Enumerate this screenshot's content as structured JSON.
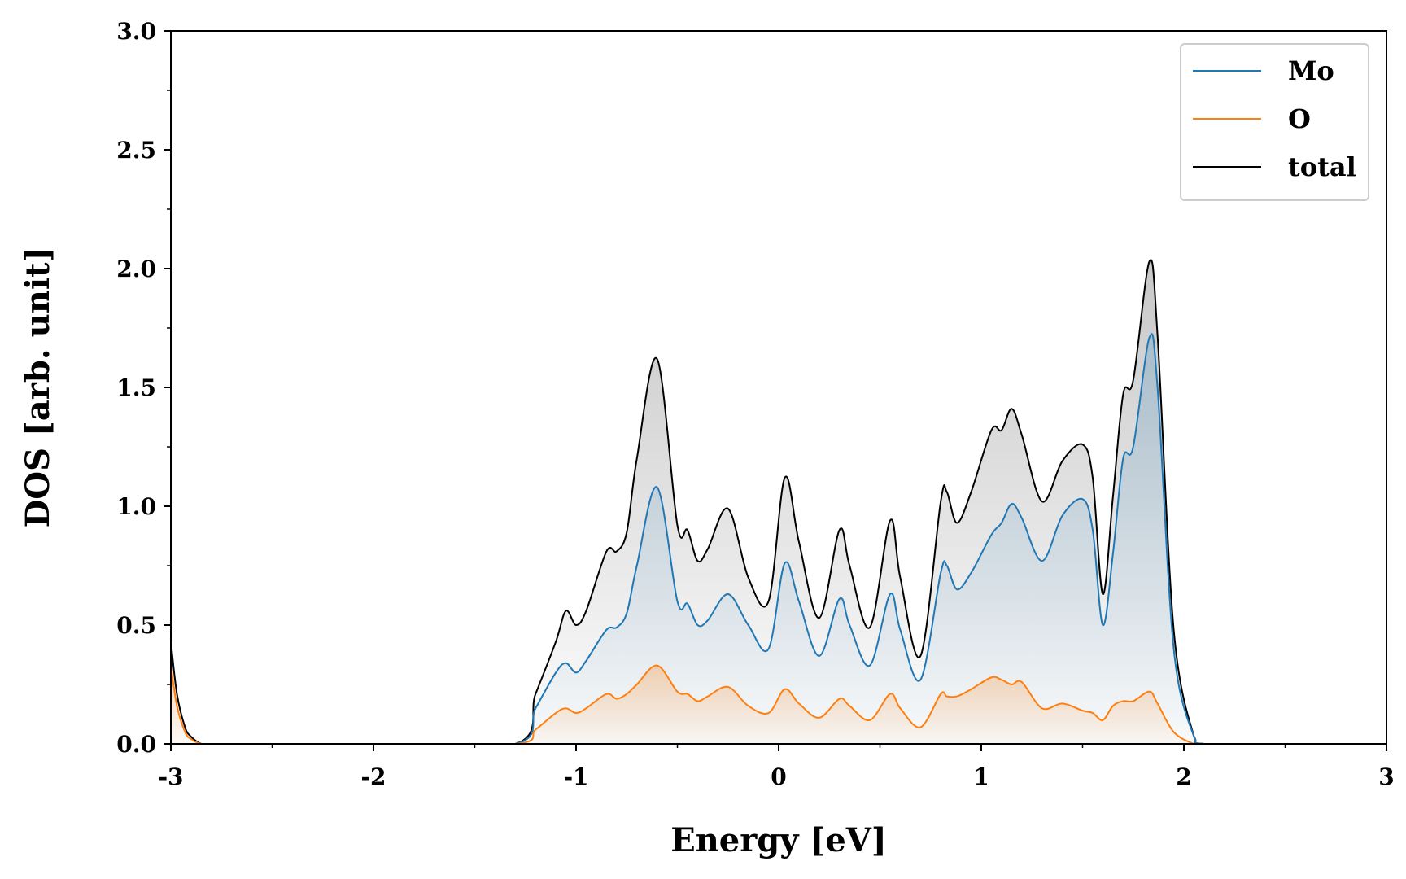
{
  "chart_data": {
    "type": "line",
    "title": "",
    "xlabel": "Energy [eV]",
    "ylabel": "DOS [arb. unit]",
    "xlim": [
      -3,
      3
    ],
    "ylim": [
      0,
      3.0
    ],
    "xticks": [
      -3,
      -2,
      -1,
      0,
      1,
      2,
      3
    ],
    "xtick_labels": [
      "-3",
      "-2",
      "-1",
      "0",
      "1",
      "2",
      "3"
    ],
    "yticks": [
      0,
      0.5,
      1.0,
      1.5,
      2.0,
      2.5,
      3.0
    ],
    "ytick_labels": [
      "0.0",
      "0.5",
      "1.0",
      "1.5",
      "2.0",
      "2.5",
      "3.0"
    ],
    "grid": false,
    "legend_position": "top-right",
    "x": [
      -3.0,
      -2.97,
      -2.93,
      -2.9,
      -2.85,
      -2.8,
      -2.0,
      -1.3,
      -1.2,
      -1.1,
      -1.05,
      -1.0,
      -0.95,
      -0.85,
      -0.8,
      -0.75,
      -0.7,
      -0.6,
      -0.5,
      -0.45,
      -0.4,
      -0.35,
      -0.25,
      -0.15,
      -0.05,
      0.03,
      0.1,
      0.2,
      0.3,
      0.35,
      0.45,
      0.55,
      0.6,
      0.7,
      0.8,
      0.83,
      0.88,
      0.95,
      1.05,
      1.1,
      1.15,
      1.2,
      1.3,
      1.4,
      1.5,
      1.55,
      1.6,
      1.65,
      1.7,
      1.75,
      1.83,
      1.87,
      1.95,
      2.05,
      2.1,
      2.5,
      3.0
    ],
    "series": [
      {
        "name": "Mo",
        "color": "#1f77b4",
        "values": [
          0.0,
          0.0,
          0.0,
          0.0,
          0.0,
          0.0,
          0.0,
          0.0,
          0.15,
          0.3,
          0.34,
          0.3,
          0.35,
          0.48,
          0.49,
          0.55,
          0.75,
          1.08,
          0.6,
          0.59,
          0.5,
          0.52,
          0.63,
          0.5,
          0.4,
          0.76,
          0.6,
          0.37,
          0.61,
          0.5,
          0.33,
          0.63,
          0.48,
          0.27,
          0.72,
          0.75,
          0.65,
          0.72,
          0.88,
          0.93,
          1.01,
          0.95,
          0.77,
          0.96,
          1.03,
          0.9,
          0.5,
          0.8,
          1.2,
          1.25,
          1.71,
          1.5,
          0.4,
          0.03,
          0.0,
          0.0,
          0.0
        ]
      },
      {
        "name": "O",
        "color": "#ff7f0e",
        "values": [
          0.33,
          0.16,
          0.05,
          0.02,
          0.0,
          0.0,
          0.0,
          0.0,
          0.06,
          0.13,
          0.15,
          0.13,
          0.15,
          0.21,
          0.19,
          0.21,
          0.25,
          0.33,
          0.22,
          0.21,
          0.18,
          0.2,
          0.24,
          0.16,
          0.13,
          0.23,
          0.17,
          0.11,
          0.19,
          0.16,
          0.1,
          0.21,
          0.15,
          0.07,
          0.21,
          0.2,
          0.2,
          0.23,
          0.28,
          0.27,
          0.25,
          0.26,
          0.15,
          0.17,
          0.14,
          0.13,
          0.1,
          0.16,
          0.18,
          0.18,
          0.22,
          0.17,
          0.05,
          0.0,
          0.0,
          0.0,
          0.0
        ]
      },
      {
        "name": "total",
        "color": "#000000",
        "values": [
          0.43,
          0.21,
          0.07,
          0.03,
          0.0,
          0.0,
          0.0,
          0.0,
          0.21,
          0.43,
          0.56,
          0.5,
          0.56,
          0.81,
          0.81,
          0.89,
          1.2,
          1.62,
          0.92,
          0.9,
          0.77,
          0.82,
          0.99,
          0.7,
          0.6,
          1.12,
          0.85,
          0.53,
          0.9,
          0.75,
          0.49,
          0.94,
          0.7,
          0.37,
          1.02,
          1.06,
          0.93,
          1.06,
          1.32,
          1.32,
          1.41,
          1.3,
          1.02,
          1.19,
          1.26,
          1.12,
          0.63,
          1.04,
          1.47,
          1.53,
          2.03,
          1.72,
          0.48,
          0.03,
          0.0,
          0.0,
          0.0
        ]
      }
    ]
  }
}
